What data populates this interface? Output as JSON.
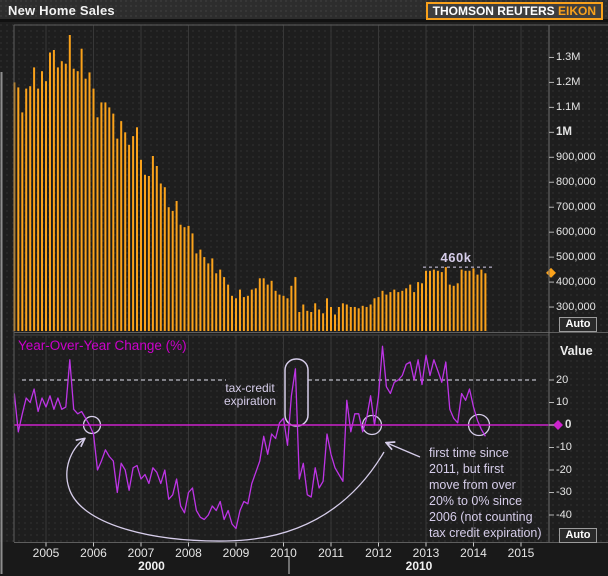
{
  "header": {
    "title": "New Home Sales",
    "brand_primary": "THOMSON REUTERS",
    "brand_accent": "EIKON"
  },
  "colors": {
    "bar": "#faa21b",
    "line": "#be34e6",
    "zero_line": "#cc22cc",
    "panel_title": "#cc00cc",
    "annotation": "#d6cdea",
    "axis_text": "#e4e4e4",
    "gridline": "#383838",
    "border": "#5e5e5e",
    "tick": "#b5b5b5",
    "accent_orange": "#f9a11b",
    "background": "#1e1e1e"
  },
  "axis": {
    "value_header": "Value",
    "auto_label": "Auto",
    "years": [
      "2005",
      "2006",
      "2007",
      "2008",
      "2009",
      "2010",
      "2011",
      "2012",
      "2013",
      "2014",
      "2015"
    ],
    "decades": [
      "2000",
      "2010"
    ],
    "top_ticks": [
      {
        "value": 1300,
        "label": "1.3M"
      },
      {
        "value": 1200,
        "label": "1.2M"
      },
      {
        "value": 1100,
        "label": "1.1M"
      },
      {
        "value": 1000,
        "label": "1M",
        "bold": true
      },
      {
        "value": 900,
        "label": "900,000"
      },
      {
        "value": 800,
        "label": "800,000"
      },
      {
        "value": 700,
        "label": "700,000"
      },
      {
        "value": 600,
        "label": "600,000"
      },
      {
        "value": 500,
        "label": "500,000"
      },
      {
        "value": 400,
        "label": "400,000"
      },
      {
        "value": 300,
        "label": "300,000"
      }
    ],
    "bottom_ticks": [
      {
        "value": 20,
        "label": "20"
      },
      {
        "value": 10,
        "label": "10"
      },
      {
        "value": 0,
        "label": "0",
        "bold": true
      },
      {
        "value": -10,
        "label": "-10"
      },
      {
        "value": -20,
        "label": "-20"
      },
      {
        "value": -30,
        "label": "-30"
      },
      {
        "value": -40,
        "label": "-40"
      }
    ]
  },
  "chart_data": [
    {
      "type": "bar",
      "title": "New Home Sales",
      "frequency": "monthly",
      "x_start": "2004-05",
      "x_end": "2014-04",
      "unit": "thousands of homes, annualized",
      "ylim": [
        200,
        1430
      ],
      "values": [
        1200,
        1180,
        1080,
        1175,
        1185,
        1260,
        1175,
        1245,
        1205,
        1320,
        1330,
        1260,
        1285,
        1275,
        1390,
        1255,
        1245,
        1335,
        1215,
        1240,
        1175,
        1060,
        1120,
        1120,
        1100,
        1075,
        975,
        1045,
        1000,
        950,
        985,
        1020,
        890,
        830,
        825,
        905,
        865,
        795,
        780,
        700,
        685,
        725,
        630,
        620,
        625,
        595,
        515,
        530,
        500,
        475,
        495,
        435,
        450,
        420,
        390,
        345,
        335,
        370,
        340,
        345,
        370,
        375,
        415,
        415,
        390,
        405,
        365,
        350,
        345,
        335,
        385,
        420,
        280,
        310,
        285,
        280,
        315,
        290,
        275,
        335,
        300,
        270,
        300,
        315,
        310,
        300,
        300,
        295,
        305,
        300,
        310,
        335,
        340,
        365,
        350,
        360,
        370,
        360,
        365,
        375,
        390,
        360,
        400,
        395,
        445,
        445,
        450,
        445,
        440,
        460,
        390,
        385,
        395,
        450,
        445,
        445,
        455,
        430,
        450,
        435
      ],
      "annotations": [
        {
          "type": "dashed-level",
          "label": "460k",
          "value": 460
        }
      ],
      "marker": {
        "type": "diamond",
        "value": 437
      }
    },
    {
      "type": "line",
      "title": "Year-Over-Year Change (%)",
      "frequency": "monthly",
      "x_start": "2004-05",
      "x_end": "2014-04",
      "ylim": [
        -52,
        40
      ],
      "values": [
        14,
        -3,
        5,
        12,
        10,
        16,
        6,
        12,
        8,
        13,
        7,
        12,
        7,
        8,
        29,
        7,
        5,
        6,
        3,
        0,
        -4,
        -20,
        -16,
        -11,
        -14,
        -16,
        -30,
        -17,
        -20,
        -29,
        -19,
        -18,
        -24,
        -22,
        -26,
        -19,
        -21,
        -26,
        -20,
        -33,
        -31,
        -24,
        -36,
        -39,
        -30,
        -28,
        -38,
        -41,
        -42,
        -40,
        -36,
        -38,
        -34,
        -42,
        -38,
        -44,
        -46,
        -38,
        -34,
        -35,
        -26,
        -21,
        -16,
        -5,
        -13,
        -4,
        -6,
        1,
        3,
        -9,
        13,
        25,
        -24,
        -17,
        -31,
        -32,
        -19,
        -28,
        -25,
        -4,
        -13,
        -19,
        -22,
        -25,
        11,
        -3,
        5,
        5,
        -3,
        3,
        13,
        0,
        13,
        35,
        17,
        14,
        19,
        20,
        22,
        27,
        28,
        20,
        29,
        18,
        31,
        22,
        29,
        24,
        19,
        28,
        7,
        3,
        1,
        14,
        11,
        16,
        8,
        2,
        -2,
        -5
      ],
      "annotations": {
        "dashed_level": 20,
        "tax_credit_label": "tax-credit\nexpiration",
        "note_text": "first time since\n2011, but first\nmove from over\n20% to 0% since\n2006 (not counting\ntax credit expiration)",
        "circled_points": [
          "2006-01 zero cross",
          "2011-12 zero cross",
          "2014-02 zero cross"
        ]
      },
      "marker": {
        "type": "diamond",
        "value": 0
      }
    }
  ]
}
